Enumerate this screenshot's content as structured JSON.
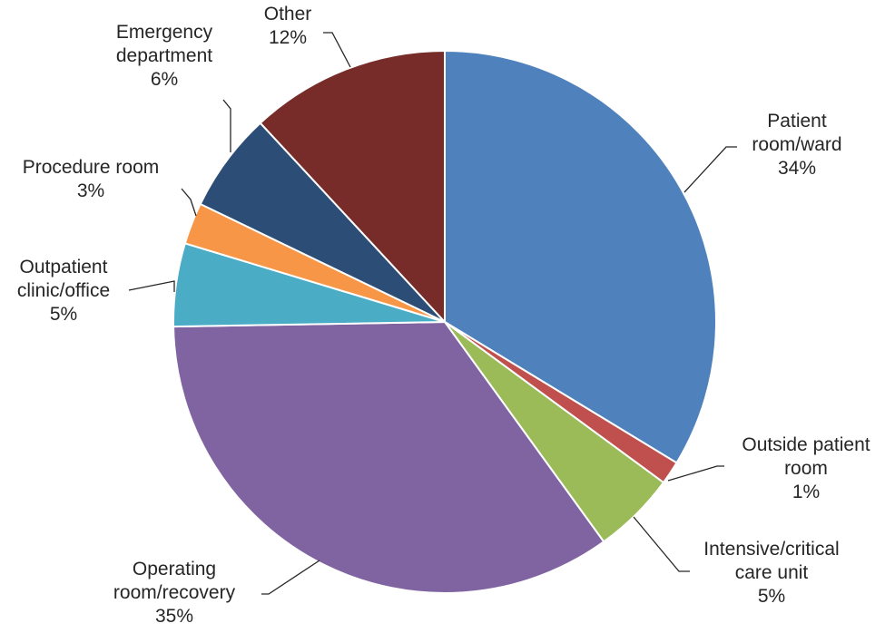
{
  "chart_data": {
    "type": "pie",
    "title": "",
    "slices": [
      {
        "label": [
          "Patient",
          "room/ward",
          "34%"
        ],
        "category": "Patient room/ward",
        "value": 34,
        "color": "#4f81bd"
      },
      {
        "label": [
          "Outside patient",
          "room",
          "1%"
        ],
        "category": "Outside patient room",
        "value": 1.4,
        "color": "#c0504d"
      },
      {
        "label": [
          "Intensive/critical",
          "care unit",
          "5%"
        ],
        "category": "Intensive/critical care unit",
        "value": 5,
        "color": "#9bbb59"
      },
      {
        "label": [
          "Operating",
          "room/recovery",
          "35%"
        ],
        "category": "Operating room/recovery",
        "value": 35,
        "color": "#8064a2"
      },
      {
        "label": [
          "Outpatient",
          "clinic/office",
          "5%"
        ],
        "category": "Outpatient clinic/office",
        "value": 5,
        "color": "#4bacc6"
      },
      {
        "label": [
          "Procedure room",
          "3%"
        ],
        "category": "Procedure room",
        "value": 2.5,
        "color": "#f79646"
      },
      {
        "label": [
          "Emergency",
          "department",
          "6%"
        ],
        "category": "Emergency department",
        "value": 6,
        "color": "#2c4d75"
      },
      {
        "label": [
          "Other",
          "12%"
        ],
        "category": "Other",
        "value": 12,
        "color": "#772c2a"
      }
    ],
    "start_angle_deg": 0,
    "direction": "clockwise",
    "legend": "none",
    "labels": "outside with leader lines"
  }
}
